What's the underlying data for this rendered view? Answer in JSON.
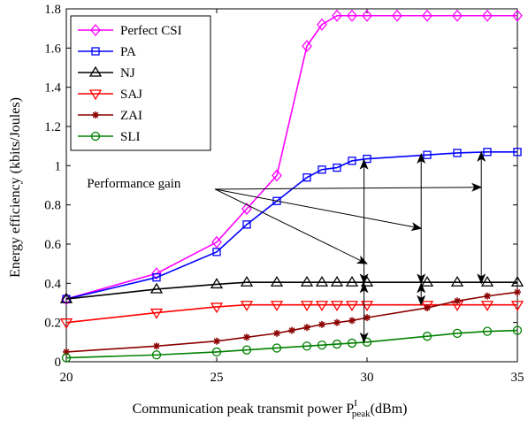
{
  "chart_data": {
    "type": "line",
    "title": "",
    "xlabel": "Communication peak transmit power",
    "xlabel_symbol": "P",
    "xlabel_sup": "I",
    "xlabel_sub": "peak",
    "xlabel_unit": "(dBm)",
    "ylabel": "Energy efficiency (kbits/Joules)",
    "xlim": [
      20,
      35
    ],
    "ylim": [
      0,
      1.8
    ],
    "xticks": [
      20,
      25,
      30,
      35
    ],
    "yticks": [
      0,
      0.2,
      0.4,
      0.6,
      0.8,
      1,
      1.2,
      1.4,
      1.6,
      1.8
    ],
    "grid": false,
    "legend_position": "top-left",
    "annotation": {
      "text": "Performance gain",
      "text_anchor": [
        22.3,
        0.88
      ],
      "targets": [
        [
          30.0,
          0.5
        ],
        [
          31.8,
          0.68
        ],
        [
          33.8,
          0.89
        ]
      ],
      "double_arrows": [
        {
          "x": 29.9,
          "y_from": 0.4,
          "y_to": 1.03
        },
        {
          "x": 31.8,
          "y_from": 0.4,
          "y_to": 1.06
        },
        {
          "x": 33.8,
          "y_from": 0.4,
          "y_to": 1.07
        },
        {
          "x": 29.9,
          "y_from": 0.1,
          "y_to": 0.4
        },
        {
          "x": 31.8,
          "y_from": 0.29,
          "y_to": 0.4
        }
      ]
    },
    "series": [
      {
        "name": "Perfect CSI",
        "color": "#ff00ff",
        "marker": "diamond",
        "x": [
          20,
          23,
          25,
          26,
          27,
          28,
          28.5,
          29,
          29.5,
          30,
          31,
          32,
          33,
          34,
          35
        ],
        "y": [
          0.32,
          0.45,
          0.61,
          0.78,
          0.95,
          1.61,
          1.72,
          1.765,
          1.765,
          1.765,
          1.765,
          1.765,
          1.765,
          1.765,
          1.765
        ]
      },
      {
        "name": "PA",
        "color": "#0000ff",
        "marker": "square",
        "x": [
          20,
          23,
          25,
          26,
          27,
          28,
          28.5,
          29,
          29.5,
          30,
          32,
          33,
          34,
          35
        ],
        "y": [
          0.32,
          0.43,
          0.56,
          0.7,
          0.82,
          0.94,
          0.98,
          0.99,
          1.025,
          1.035,
          1.055,
          1.065,
          1.07,
          1.07
        ]
      },
      {
        "name": "NJ",
        "color": "#000000",
        "marker": "triangle-up",
        "x": [
          20,
          23,
          25,
          26,
          27,
          28,
          28.5,
          29,
          29.5,
          30,
          32,
          33,
          34,
          35
        ],
        "y": [
          0.32,
          0.37,
          0.395,
          0.405,
          0.405,
          0.405,
          0.405,
          0.405,
          0.405,
          0.405,
          0.405,
          0.405,
          0.405,
          0.405
        ]
      },
      {
        "name": "SAJ",
        "color": "#ff0000",
        "marker": "triangle-down",
        "x": [
          20,
          23,
          25,
          26,
          27,
          28,
          28.5,
          29,
          29.5,
          30,
          32,
          33,
          34,
          35
        ],
        "y": [
          0.2,
          0.25,
          0.28,
          0.29,
          0.29,
          0.29,
          0.29,
          0.29,
          0.29,
          0.29,
          0.29,
          0.29,
          0.29,
          0.29
        ]
      },
      {
        "name": "ZAI",
        "color": "#8b0000",
        "marker": "asterisk",
        "x": [
          20,
          23,
          25,
          26,
          27,
          27.5,
          28,
          28.5,
          29,
          29.5,
          30,
          32,
          33,
          34,
          35
        ],
        "y": [
          0.05,
          0.08,
          0.105,
          0.125,
          0.145,
          0.16,
          0.175,
          0.19,
          0.2,
          0.21,
          0.225,
          0.275,
          0.31,
          0.335,
          0.355
        ]
      },
      {
        "name": "SLI",
        "color": "#008000",
        "marker": "circle",
        "x": [
          20,
          23,
          25,
          26,
          27,
          28,
          28.5,
          29,
          29.5,
          30,
          32,
          33,
          34,
          35
        ],
        "y": [
          0.02,
          0.035,
          0.05,
          0.06,
          0.07,
          0.08,
          0.085,
          0.09,
          0.095,
          0.1,
          0.13,
          0.145,
          0.155,
          0.16
        ]
      }
    ]
  }
}
